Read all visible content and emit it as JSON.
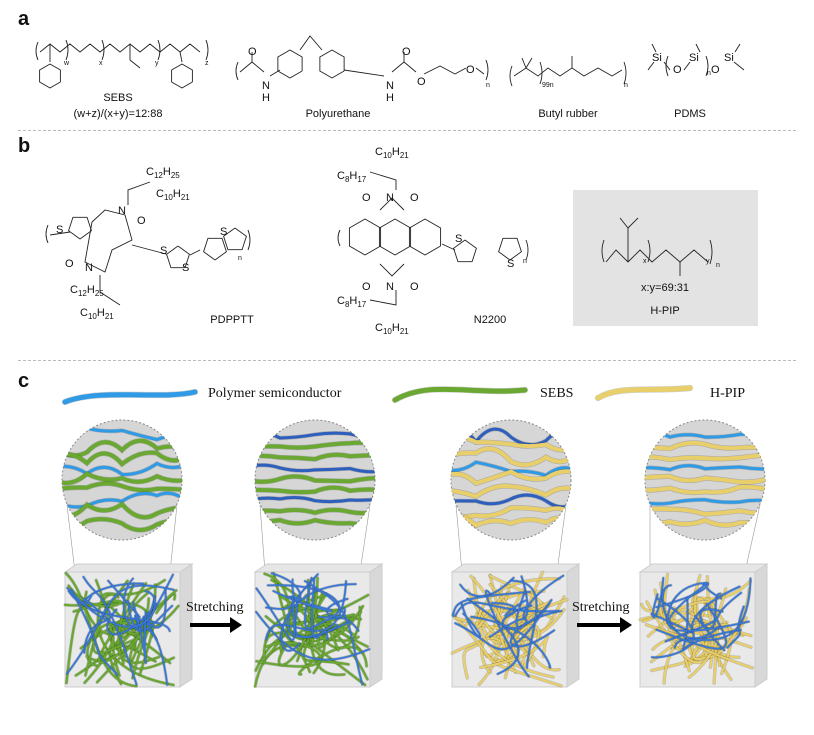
{
  "panels": [
    "a",
    "b",
    "c"
  ],
  "panel_a": {
    "sebs": {
      "name": "SEBS",
      "ratio": "(w+z)/(x+y)=12:88",
      "subs": [
        "w",
        "x",
        "y",
        "z"
      ]
    },
    "polyurethane": {
      "name": "Polyurethane",
      "atoms": [
        "O",
        "N",
        "H",
        "O",
        "N",
        "H",
        "O",
        "O",
        "n"
      ]
    },
    "butyl": {
      "name": "Butyl rubber",
      "subs": [
        "99n",
        "n"
      ]
    },
    "pdms": {
      "name": "PDMS",
      "atoms": [
        "Si",
        "O",
        "Si",
        "O",
        "Si",
        "n"
      ]
    }
  },
  "panel_b": {
    "pdpptt": {
      "name": "PDPPTT",
      "chains": [
        "C12H25",
        "C10H21",
        "C12H25",
        "C10H21"
      ],
      "atoms": [
        "N",
        "N",
        "O",
        "O",
        "S",
        "S",
        "S",
        "S",
        "n"
      ]
    },
    "n2200": {
      "name": "N2200",
      "chains": [
        "C10H21",
        "C8H17",
        "C8H17",
        "C10H21"
      ],
      "atoms": [
        "N",
        "N",
        "O",
        "O",
        "O",
        "O",
        "S",
        "S",
        "n"
      ]
    },
    "hpip": {
      "name": "H-PIP",
      "ratio": "x:y=69:31",
      "subs": [
        "x",
        "y",
        "n"
      ]
    }
  },
  "panel_c": {
    "legend": [
      {
        "label": "Polymer semiconductor",
        "color": "#2f9be6"
      },
      {
        "label": "SEBS",
        "color": "#6aa832"
      },
      {
        "label": "H-PIP",
        "color": "#e8cf6a"
      }
    ],
    "arrow_labels": [
      "Stretching",
      "Stretching"
    ]
  }
}
